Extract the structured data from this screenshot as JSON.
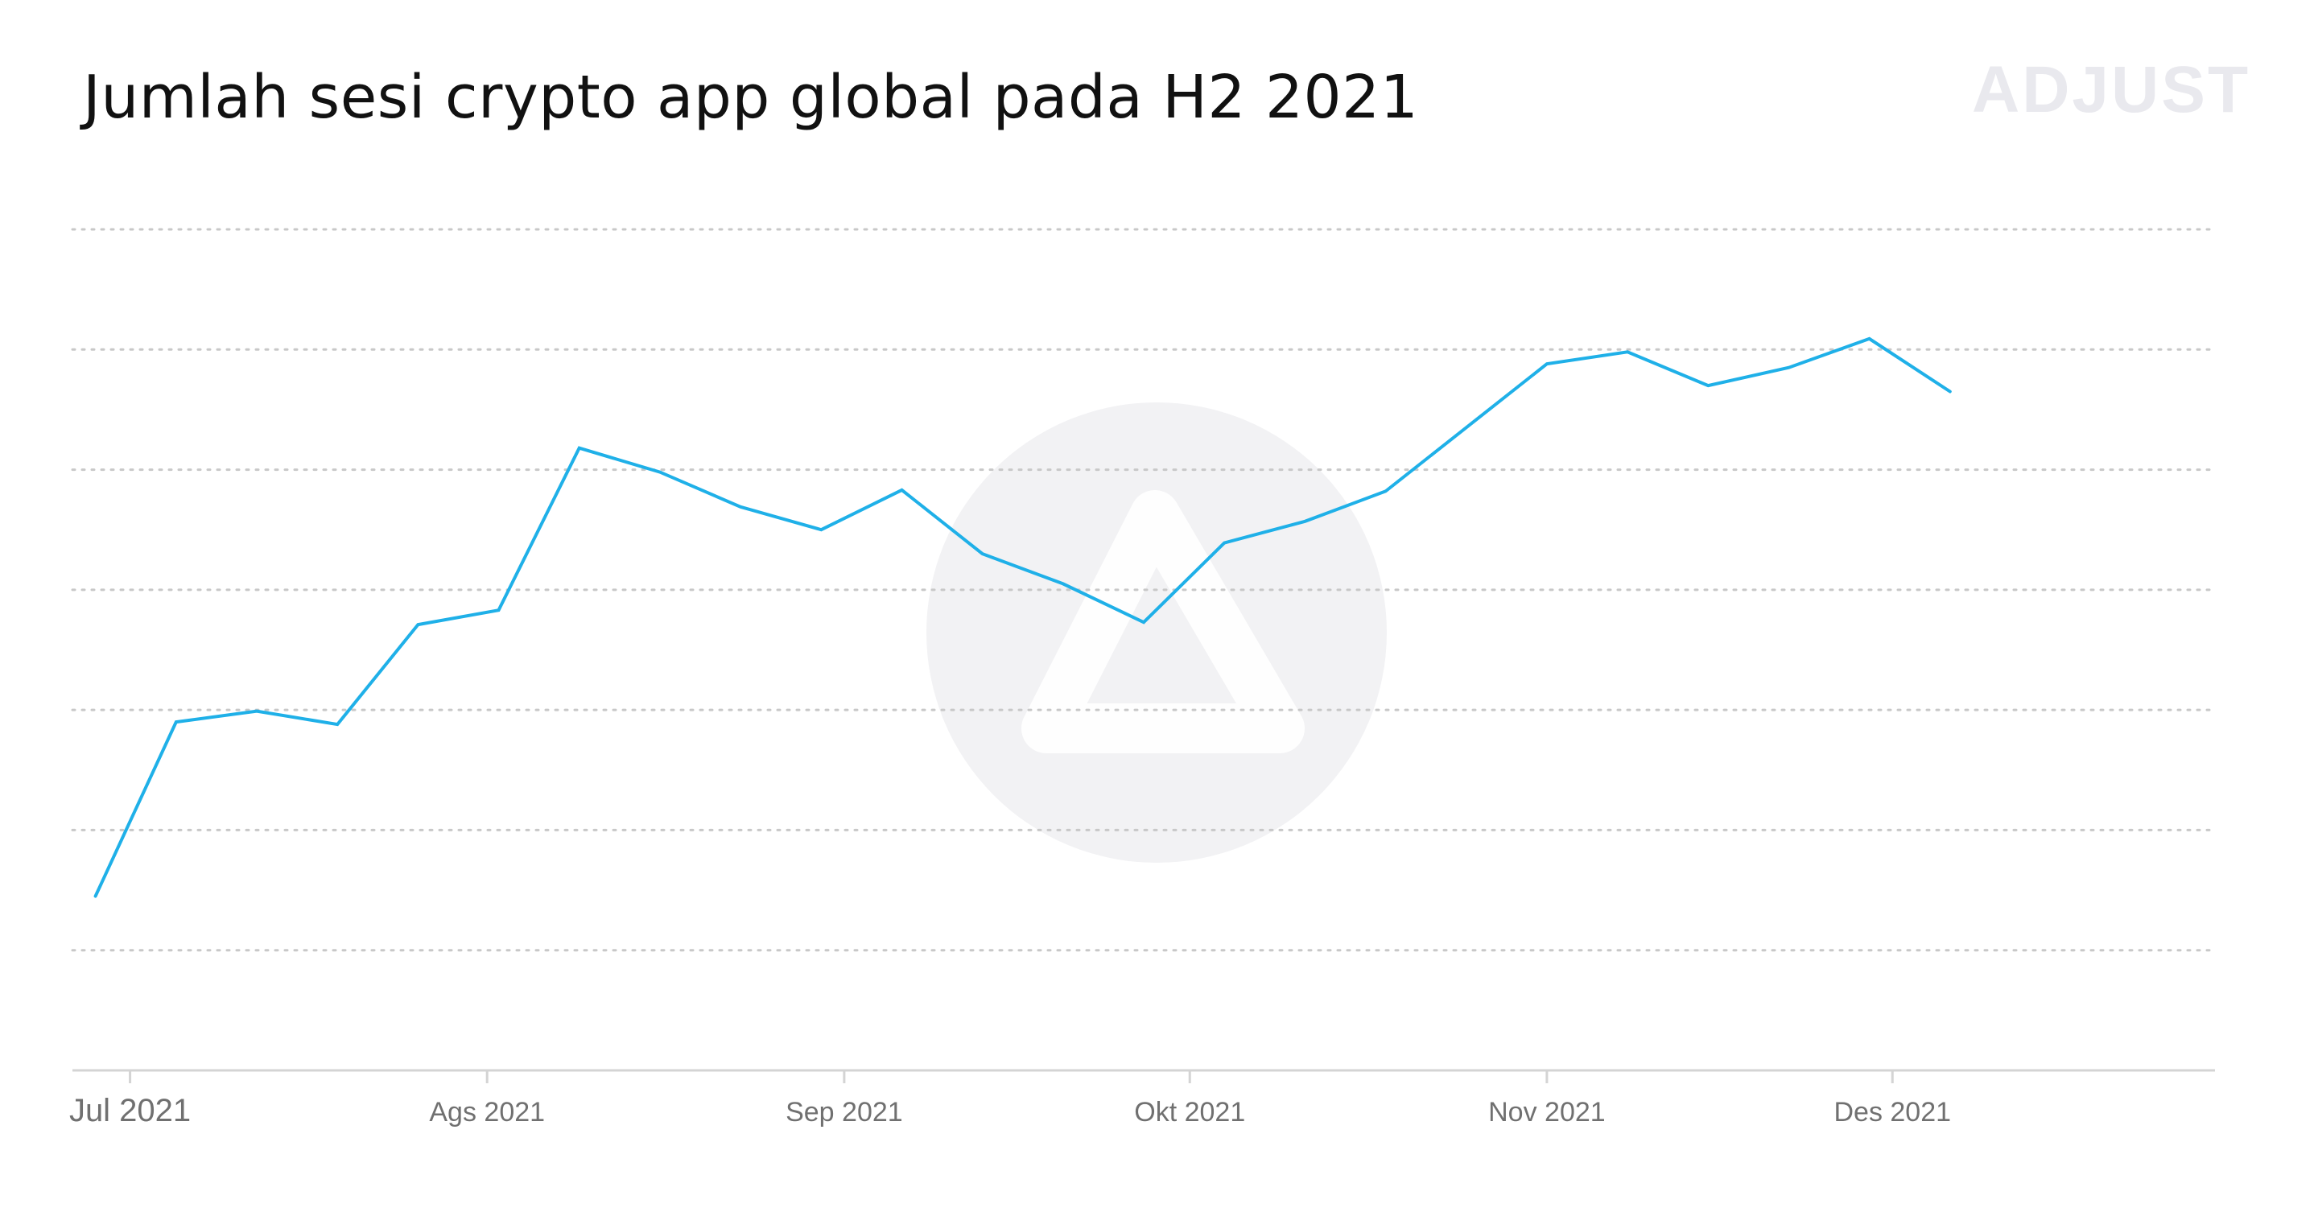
{
  "title": "Jumlah sesi crypto app global pada H2 2021",
  "brand": "ADJUST",
  "colors": {
    "line": "#1fb0e8",
    "grid": "#c8c8c8",
    "axis": "#d4d4d4",
    "tick_label": "#707070",
    "watermark": "#f2f2f4"
  },
  "chart_data": {
    "type": "line",
    "title": "Jumlah sesi crypto app global pada H2 2021",
    "xlabel": "",
    "ylabel": "",
    "y_tick_labels_shown": false,
    "grid": true,
    "legend": "none",
    "xlim": [
      "2021-06-26",
      "2021-12-29"
    ],
    "ylim": [
      0,
      7
    ],
    "x_ticks": [
      {
        "date": "2021-07-01",
        "label": "Jul 2021"
      },
      {
        "date": "2021-08-01",
        "label": "Ags 2021"
      },
      {
        "date": "2021-09-01",
        "label": "Sep 2021"
      },
      {
        "date": "2021-10-01",
        "label": "Okt 2021"
      },
      {
        "date": "2021-11-01",
        "label": "Nov 2021"
      },
      {
        "date": "2021-12-01",
        "label": "Des 2021"
      }
    ],
    "x": [
      "2021-06-28",
      "2021-07-05",
      "2021-07-12",
      "2021-07-19",
      "2021-07-26",
      "2021-08-02",
      "2021-08-09",
      "2021-08-16",
      "2021-08-23",
      "2021-08-30",
      "2021-09-06",
      "2021-09-13",
      "2021-09-20",
      "2021-09-27",
      "2021-10-04",
      "2021-10-11",
      "2021-10-18",
      "2021-10-25",
      "2021-11-01",
      "2021-11-08",
      "2021-11-15",
      "2021-11-22",
      "2021-11-29",
      "2021-12-06"
    ],
    "y": [
      1.45,
      2.9,
      2.99,
      2.88,
      3.71,
      3.83,
      5.18,
      4.98,
      4.69,
      4.5,
      4.83,
      4.3,
      4.05,
      3.73,
      4.39,
      4.57,
      4.82,
      5.35,
      5.88,
      5.98,
      5.7,
      5.85,
      6.09,
      5.65
    ]
  }
}
